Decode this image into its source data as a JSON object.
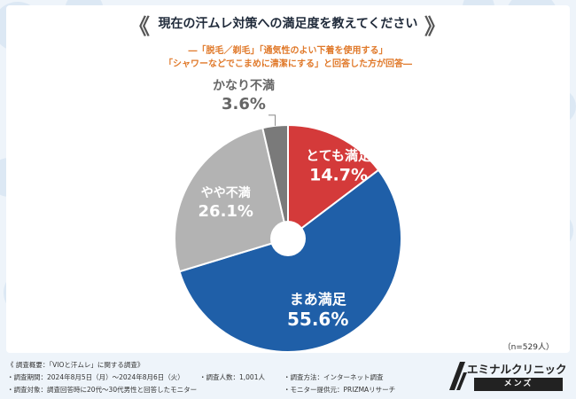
{
  "title": "現在の汗ムレ対策への満足度を教えてください",
  "subtitle_lines": [
    "―「脱毛／剃毛」「通気性のよい下着を使用する」",
    "「シャワーなどでこまめに清潔にする」と回答した方が回答―"
  ],
  "sample_note": "（n=529人）",
  "chart_data": {
    "type": "pie",
    "title": "現在の汗ムレ対策への満足度を教えてください",
    "slices": [
      {
        "label": "とても満足",
        "value": 14.7,
        "value_label": "14.7%",
        "color": "#d43a3a"
      },
      {
        "label": "まあ満足",
        "value": 55.6,
        "value_label": "55.6%",
        "color": "#1f5fa8"
      },
      {
        "label": "やや不満",
        "value": 26.1,
        "value_label": "26.1%",
        "color": "#b3b3b3"
      },
      {
        "label": "かなり不満",
        "value": 3.6,
        "value_label": "3.6%",
        "color": "#7a7a7a"
      }
    ]
  },
  "footer": {
    "survey_overview": "《 調査概要：「VIOと汗ムレ」に関する調査》",
    "period": "・調査期間：2024年8月5日（月）〜2024年8月6日（火）",
    "respondents": "・調査人数：1,001人",
    "method": "・調査方法：インターネット調査",
    "target": "・調査対象：調査回答時に20代〜30代男性と回答したモニター",
    "provider": "・モニター提供元：PRIZMAリサーチ"
  },
  "logo": {
    "name": "エミナルクリニック",
    "sub": "メンズ"
  }
}
